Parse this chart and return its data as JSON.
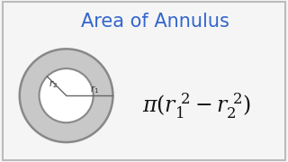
{
  "title": "Area of Annulus",
  "title_color": "#3366cc",
  "title_fontsize": 15,
  "formula_fontsize": 17,
  "formula_color": "#111111",
  "bg_color": "#f5f5f5",
  "border_color": "#bbbbbb",
  "annulus_fill_color": "#c8c8c8",
  "annulus_edge_color": "#888888",
  "annulus_line_color": "#666666",
  "r1_label": "$r_1$",
  "r2_label": "$r_2$",
  "label_color": "#333333",
  "label_fontsize": 7.5
}
